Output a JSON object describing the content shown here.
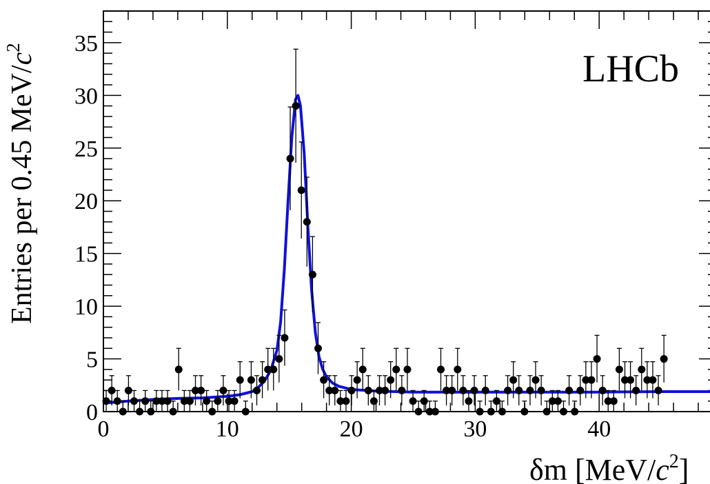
{
  "chart_data": {
    "type": "scatter",
    "title": "",
    "experiment_label": "LHCb",
    "xlabel": {
      "main": "δm [MeV/",
      "italic": "c",
      "sup": "2",
      "close": "]"
    },
    "ylabel": {
      "main": "Entries per 0.45 MeV/",
      "italic": "c",
      "sup": "2"
    },
    "xlim": [
      0,
      49.5
    ],
    "ylim": [
      0,
      38
    ],
    "x_ticks": [
      0,
      10,
      20,
      30,
      40
    ],
    "y_ticks": [
      0,
      5,
      10,
      15,
      20,
      25,
      30,
      35
    ],
    "grid": false,
    "fit_color": "#1010dd",
    "marker_color": "#000000",
    "series": [
      {
        "kind": "data",
        "bin_width": 0.45,
        "x_start": 0.225,
        "counts": [
          1,
          2,
          1,
          0,
          2,
          1,
          0,
          1,
          0,
          1,
          1,
          1,
          0,
          4,
          1,
          1,
          2,
          2,
          1,
          0,
          1,
          2,
          1,
          1,
          3,
          0,
          3,
          2,
          3,
          4,
          4,
          5,
          7,
          24,
          29,
          21,
          18,
          13,
          6,
          3,
          2,
          2,
          1,
          1,
          2,
          3,
          4,
          2,
          1,
          2,
          2,
          3,
          4,
          2,
          4,
          1,
          0,
          1,
          0,
          0,
          4,
          2,
          2,
          4,
          2,
          1,
          2,
          0,
          2,
          0,
          1,
          0,
          2,
          3,
          2,
          0,
          2,
          3,
          2,
          0,
          1,
          1,
          0,
          2,
          0,
          2,
          3,
          3,
          5,
          2,
          1,
          1,
          4,
          3,
          3,
          2,
          4,
          3,
          3,
          2,
          5
        ]
      },
      {
        "kind": "fit",
        "x": [
          0,
          2,
          4,
          6,
          8,
          10,
          11,
          12,
          12.5,
          13,
          13.5,
          14,
          14.3,
          14.6,
          14.9,
          15.2,
          15.5,
          15.7,
          15.9,
          16.2,
          16.5,
          16.8,
          17.1,
          17.4,
          17.7,
          18,
          18.5,
          19,
          20,
          22,
          25,
          30,
          35,
          40,
          45,
          49.5
        ],
        "y": [
          0.8,
          1.0,
          1.15,
          1.25,
          1.3,
          1.45,
          1.6,
          1.9,
          2.3,
          2.9,
          3.9,
          5.8,
          8.5,
          13.5,
          20,
          26,
          29.6,
          30,
          29,
          24.5,
          17.5,
          11.5,
          7.5,
          5.2,
          4.0,
          3.3,
          2.7,
          2.4,
          2.1,
          1.95,
          1.85,
          1.85,
          1.85,
          1.85,
          1.9,
          1.9
        ]
      }
    ]
  }
}
